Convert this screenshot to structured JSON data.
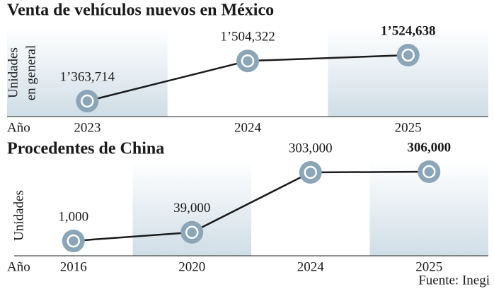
{
  "chart_data": [
    {
      "type": "line",
      "title": "Venta de vehículos nuevos en México",
      "y_label": [
        "Unidades",
        "en general"
      ],
      "x_label": "Año",
      "categories": [
        "2023",
        "2024",
        "2025"
      ],
      "values": [
        1363714,
        1504322,
        1524638
      ],
      "value_labels": [
        "1’363,714",
        "1’504,322",
        "1’524,638"
      ],
      "color": "#8aa6b8"
    },
    {
      "type": "line",
      "title": "Procedentes de China",
      "y_label": [
        "Unidades"
      ],
      "x_label": "Año",
      "categories": [
        "2016",
        "2020",
        "2024",
        "2025"
      ],
      "values": [
        1000,
        39000,
        303000,
        306000
      ],
      "value_labels": [
        "1,000",
        "39,000",
        "303,000",
        "306,000"
      ],
      "color": "#8aa6b8"
    }
  ],
  "source": "Fuente: Inegi"
}
